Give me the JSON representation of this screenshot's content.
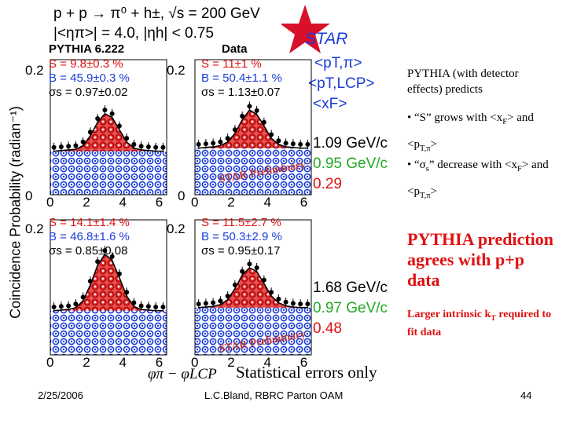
{
  "header": {
    "line1": "p + p → π⁰ + h±, √s = 200 GeV",
    "line2": "|<ηπ>| = 4.0, |ηh| < 0.75",
    "star_logo": "STAR"
  },
  "legend": {
    "items": [
      {
        "text": "<pT,π>",
        "color": "#1a3cd8"
      },
      {
        "text": "<pT,LCP>",
        "color": "#1a3cd8"
      },
      {
        "text": "<xF>",
        "color": "#1a3cd8"
      }
    ]
  },
  "panels": {
    "col_titles": [
      "PYTHIA 6.222",
      "Data"
    ],
    "top_left": {
      "S": "S = 9.8±0.3 %",
      "B": "B = 45.9±0.3 %",
      "sigma": "σs = 0.97±0.02"
    },
    "top_right": {
      "S": "S = 11±1 %",
      "B": "B = 50.4±1.1 %",
      "sigma": "σs = 1.13±0.07"
    },
    "bottom_left": {
      "S": "S = 14.1±1.4 %",
      "B": "B = 46.8±1.6 %",
      "sigma": "σs = 0.85±0.08"
    },
    "bottom_right": {
      "S": "S = 11.5±2.7 %",
      "B": "B = 50.3±2.9 %",
      "sigma": "σs = 0.95±0.17"
    },
    "top_values": [
      "1.09 GeV/c",
      "0.95 GeV/c",
      "0.29"
    ],
    "bottom_values": [
      "1.68 GeV/c",
      "0.97 GeV/c",
      "0.48"
    ],
    "value_colors": [
      "#000000",
      "#22aa22",
      "#e01010"
    ],
    "preliminary": "STAR Preliminary",
    "y_tick_02": "0.2",
    "y_tick_0": "0",
    "x_ticks": [
      "0",
      "2",
      "4",
      "6"
    ]
  },
  "axes": {
    "ylabel": "Coincidence Probability (radian⁻¹)",
    "xlabel": "φπ − φLCP",
    "errors_note": "Statistical errors only"
  },
  "chart_data": {
    "type": "scatter",
    "x": [
      0.2,
      0.6,
      1.0,
      1.4,
      1.8,
      2.2,
      2.6,
      3.0,
      3.4,
      3.8,
      4.2,
      4.6,
      5.0,
      5.4,
      5.8,
      6.2
    ],
    "series": [
      {
        "values": [
          0.071,
          0.072,
          0.073,
          0.074,
          0.08,
          0.096,
          0.118,
          0.132,
          0.126,
          0.106,
          0.086,
          0.076,
          0.073,
          0.072,
          0.071,
          0.071
        ]
      },
      {
        "values": [
          0.076,
          0.077,
          0.078,
          0.08,
          0.086,
          0.1,
          0.122,
          0.138,
          0.131,
          0.112,
          0.092,
          0.082,
          0.078,
          0.077,
          0.076,
          0.076
        ]
      },
      {
        "values": [
          0.072,
          0.073,
          0.074,
          0.077,
          0.088,
          0.114,
          0.146,
          0.164,
          0.154,
          0.126,
          0.096,
          0.079,
          0.074,
          0.073,
          0.072,
          0.072
        ]
      },
      {
        "values": [
          0.077,
          0.078,
          0.079,
          0.082,
          0.09,
          0.108,
          0.13,
          0.142,
          0.136,
          0.116,
          0.096,
          0.085,
          0.08,
          0.078,
          0.077,
          0.077
        ]
      }
    ],
    "xlim": [
      0,
      6.4
    ],
    "ylim": [
      0,
      0.22
    ]
  },
  "right": {
    "intro": "PYTHIA (with detector effects) predicts",
    "bullet1_a": "• “S” grows with <x",
    "bullet1_sub": "F",
    "bullet1_b": "> and <p",
    "bullet1_sub2": "T,π",
    "bullet1_c": ">",
    "bullet2_a": "• “σ",
    "bullet2_sub": "s",
    "bullet2_b": "” decrease with <x",
    "bullet2_sub2": "F",
    "bullet2_c": "> and <p",
    "bullet2_sub3": "T,π",
    "bullet2_d": ">",
    "agree": "PYTHIA prediction agrees with p+p data",
    "intrinsic_a": "Larger intrinsic k",
    "intrinsic_sub": "T",
    "intrinsic_b": " required to fit data"
  },
  "footer": {
    "date": "2/25/2006",
    "center": "L.C.Bland, RBRC Parton OAM",
    "page": "44"
  }
}
